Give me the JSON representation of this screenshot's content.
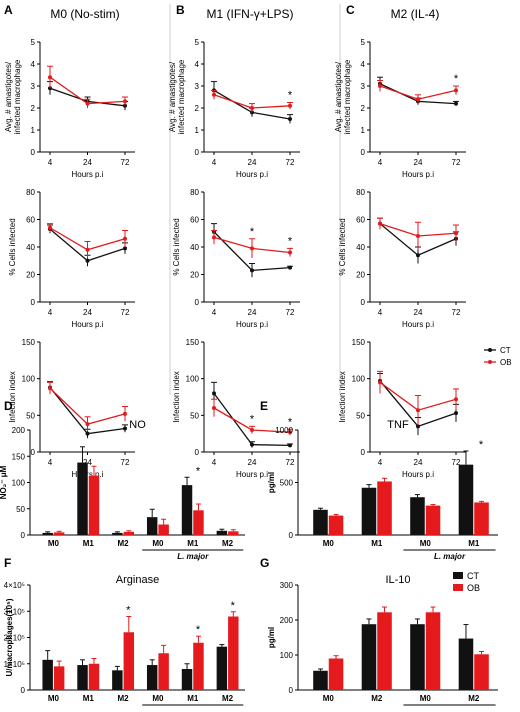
{
  "figure": {
    "panel_letters": [
      "A",
      "B",
      "C",
      "D",
      "E",
      "F",
      "G"
    ],
    "column_titles": [
      "M0 (No-stim)",
      "M1 (IFN-γ+LPS)",
      "M2 (IL-4)"
    ],
    "row_ylabels": [
      "Avg. # amastigotes/ infected macrophage",
      "% Cells infected",
      "Infection index"
    ],
    "xlabel": "Hours p.i",
    "legend_abc": [
      "CT",
      "OB"
    ],
    "legend_fg": [
      "CT",
      "OB"
    ],
    "lmajor_label": "L. major",
    "star": "*"
  },
  "colors": {
    "ct": "#111111",
    "ob": "#e41a1c"
  },
  "chart_data": [
    {
      "panel": "A",
      "row": 0,
      "type": "line",
      "title": "M0 (No-stim)",
      "xlabel": "Hours p.i",
      "ylabel": "Avg. # amastigotes/ infected macrophage",
      "x": [
        "4",
        "24",
        "72"
      ],
      "ylim": [
        0,
        5
      ],
      "yticks": [
        0,
        1,
        2,
        3,
        4,
        5
      ],
      "series": [
        {
          "name": "CT",
          "values": [
            2.9,
            2.3,
            2.1
          ],
          "err": [
            0.3,
            0.2,
            0.2
          ]
        },
        {
          "name": "OB",
          "values": [
            3.4,
            2.2,
            2.3
          ],
          "err": [
            0.5,
            0.2,
            0.2
          ]
        }
      ],
      "stars": []
    },
    {
      "panel": "A",
      "row": 1,
      "type": "line",
      "xlabel": "Hours p.i",
      "ylabel": "% Cells infected",
      "x": [
        "4",
        "24",
        "72"
      ],
      "ylim": [
        0,
        80
      ],
      "yticks": [
        0,
        20,
        40,
        60,
        80
      ],
      "series": [
        {
          "name": "CT",
          "values": [
            53,
            30,
            39
          ],
          "err": [
            3,
            4,
            4
          ]
        },
        {
          "name": "OB",
          "values": [
            54,
            38,
            46
          ],
          "err": [
            3,
            6,
            6
          ]
        }
      ],
      "stars": []
    },
    {
      "panel": "A",
      "row": 2,
      "type": "line",
      "xlabel": "Hours p.i",
      "ylabel": "Infection index",
      "x": [
        "4",
        "24",
        "72"
      ],
      "ylim": [
        0,
        150
      ],
      "yticks": [
        0,
        50,
        100,
        150
      ],
      "series": [
        {
          "name": "CT",
          "values": [
            88,
            25,
            32
          ],
          "err": [
            8,
            6,
            5
          ]
        },
        {
          "name": "OB",
          "values": [
            87,
            38,
            52
          ],
          "err": [
            8,
            10,
            10
          ]
        }
      ],
      "stars": []
    },
    {
      "panel": "B",
      "row": 0,
      "type": "line",
      "title": "M1 (IFN-γ+LPS)",
      "xlabel": "Hours p.i",
      "ylabel": "Avg. # amastigotes/ infected macrophage",
      "x": [
        "4",
        "24",
        "72"
      ],
      "ylim": [
        0,
        5
      ],
      "yticks": [
        0,
        1,
        2,
        3,
        4,
        5
      ],
      "series": [
        {
          "name": "CT",
          "values": [
            2.8,
            1.8,
            1.5
          ],
          "err": [
            0.4,
            0.2,
            0.2
          ]
        },
        {
          "name": "OB",
          "values": [
            2.6,
            2.0,
            2.1
          ],
          "err": [
            0.2,
            0.2,
            0.15
          ]
        }
      ],
      "stars": [
        {
          "x": "72",
          "text": "*"
        }
      ]
    },
    {
      "panel": "B",
      "row": 1,
      "type": "line",
      "xlabel": "Hours p.i",
      "ylabel": "% Cells infected",
      "x": [
        "4",
        "24",
        "72"
      ],
      "ylim": [
        0,
        80
      ],
      "yticks": [
        0,
        20,
        40,
        60,
        80
      ],
      "series": [
        {
          "name": "CT",
          "values": [
            51,
            23,
            25
          ],
          "err": [
            6,
            5,
            1
          ]
        },
        {
          "name": "OB",
          "values": [
            47,
            39,
            36
          ],
          "err": [
            5,
            7,
            3
          ]
        }
      ],
      "stars": [
        {
          "x": "24",
          "text": "*"
        },
        {
          "x": "72",
          "text": "*"
        }
      ]
    },
    {
      "panel": "B",
      "row": 2,
      "type": "line",
      "xlabel": "Hours p.i",
      "ylabel": "Infection index",
      "x": [
        "4",
        "24",
        "72"
      ],
      "ylim": [
        0,
        150
      ],
      "yticks": [
        0,
        50,
        100,
        150
      ],
      "series": [
        {
          "name": "CT",
          "values": [
            80,
            10,
            9
          ],
          "err": [
            15,
            4,
            2
          ]
        },
        {
          "name": "OB",
          "values": [
            60,
            30,
            27
          ],
          "err": [
            12,
            5,
            4
          ]
        }
      ],
      "stars": [
        {
          "x": "24",
          "text": "*"
        },
        {
          "x": "72",
          "text": "*"
        }
      ]
    },
    {
      "panel": "C",
      "row": 0,
      "type": "line",
      "title": "M2 (IL-4)",
      "xlabel": "Hours p.i",
      "ylabel": "Avg. # amastigotes/ infected macrophage",
      "x": [
        "4",
        "24",
        "72"
      ],
      "ylim": [
        0,
        5
      ],
      "yticks": [
        0,
        1,
        2,
        3,
        4,
        5
      ],
      "series": [
        {
          "name": "CT",
          "values": [
            3.1,
            2.3,
            2.2
          ],
          "err": [
            0.3,
            0.15,
            0.1
          ]
        },
        {
          "name": "OB",
          "values": [
            3.0,
            2.4,
            2.8
          ],
          "err": [
            0.25,
            0.2,
            0.2
          ]
        }
      ],
      "stars": [
        {
          "x": "72",
          "text": "*"
        }
      ]
    },
    {
      "panel": "C",
      "row": 1,
      "type": "line",
      "xlabel": "Hours p.i",
      "ylabel": "% Cells infected",
      "x": [
        "4",
        "24",
        "72"
      ],
      "ylim": [
        0,
        80
      ],
      "yticks": [
        0,
        20,
        40,
        60,
        80
      ],
      "series": [
        {
          "name": "CT",
          "values": [
            57,
            34,
            46
          ],
          "err": [
            4,
            6,
            5
          ]
        },
        {
          "name": "OB",
          "values": [
            57,
            48,
            50
          ],
          "err": [
            4,
            10,
            6
          ]
        }
      ],
      "stars": []
    },
    {
      "panel": "C",
      "row": 2,
      "type": "line",
      "xlabel": "Hours p.i",
      "ylabel": "Infection index",
      "x": [
        "4",
        "24",
        "72"
      ],
      "ylim": [
        0,
        150
      ],
      "yticks": [
        0,
        50,
        100,
        150
      ],
      "series": [
        {
          "name": "CT",
          "values": [
            97,
            35,
            53
          ],
          "err": [
            10,
            12,
            12
          ]
        },
        {
          "name": "OB",
          "values": [
            95,
            57,
            72
          ],
          "err": [
            15,
            20,
            14
          ]
        }
      ],
      "stars": [],
      "legend": [
        "CT",
        "OB"
      ]
    },
    {
      "panel": "D",
      "type": "bar",
      "title": "NO",
      "ylabel": "NO₂⁻ μM",
      "categories": [
        "M0",
        "M1",
        "M2",
        "M0",
        "M1",
        "M2"
      ],
      "group_label": "L. major",
      "group_range": [
        3,
        5
      ],
      "ylim": [
        0,
        200
      ],
      "yticks": [
        0,
        50,
        100,
        150,
        200
      ],
      "series": [
        {
          "name": "CT",
          "values": [
            4,
            138,
            4,
            34,
            95,
            8
          ],
          "err": [
            2,
            30,
            2,
            15,
            15,
            3
          ]
        },
        {
          "name": "OB",
          "values": [
            5,
            113,
            6,
            20,
            47,
            7
          ],
          "err": [
            2,
            18,
            2,
            10,
            12,
            3
          ]
        }
      ],
      "stars": [
        {
          "index": 4,
          "text": "*"
        }
      ]
    },
    {
      "panel": "E",
      "type": "bar",
      "title": "TNF",
      "ylabel": "pg/ml",
      "categories": [
        "M0",
        "M1",
        "M0",
        "M1"
      ],
      "group_label": "L. major",
      "group_range": [
        2,
        3
      ],
      "ylim": [
        0,
        1000
      ],
      "yticks": [
        0,
        500,
        1000
      ],
      "series": [
        {
          "name": "CT",
          "values": [
            240,
            450,
            360,
            670
          ],
          "err": [
            15,
            30,
            25,
            130
          ]
        },
        {
          "name": "OB",
          "values": [
            185,
            510,
            280,
            310
          ],
          "err": [
            10,
            30,
            10,
            10
          ]
        }
      ],
      "stars": [
        {
          "index": 3,
          "text": "*"
        }
      ]
    },
    {
      "panel": "F",
      "type": "bar",
      "title": "Arginase",
      "ylabel": "U/macrophages(10⁵)",
      "categories": [
        "M0",
        "M1",
        "M2",
        "M0",
        "M1",
        "M2"
      ],
      "group_label": "L. major",
      "group_range": [
        3,
        5
      ],
      "ylim": [
        0,
        400000
      ],
      "yticks": [
        0,
        100000,
        200000,
        300000,
        400000
      ],
      "ytick_labels": [
        "0",
        "1×10⁵",
        "2×10⁵",
        "3×10⁵",
        "4×10⁵"
      ],
      "series": [
        {
          "name": "CT",
          "values": [
            115000,
            95000,
            75000,
            95000,
            80000,
            165000
          ],
          "err": [
            35000,
            20000,
            15000,
            20000,
            20000,
            8000
          ]
        },
        {
          "name": "OB",
          "values": [
            90000,
            100000,
            220000,
            140000,
            180000,
            280000
          ],
          "err": [
            20000,
            20000,
            60000,
            30000,
            25000,
            18000
          ]
        }
      ],
      "stars": [
        {
          "index": 2,
          "text": "*"
        },
        {
          "index": 4,
          "text": "*"
        },
        {
          "index": 5,
          "text": "*"
        }
      ]
    },
    {
      "panel": "G",
      "type": "bar",
      "title": "IL-10",
      "ylabel": "pg/ml",
      "categories": [
        "M0",
        "M2",
        "M0",
        "M2"
      ],
      "group_label": "L. major",
      "group_range": [
        2,
        3
      ],
      "ylim": [
        0,
        300
      ],
      "yticks": [
        0,
        100,
        200,
        300
      ],
      "series": [
        {
          "name": "CT",
          "values": [
            55,
            188,
            188,
            147
          ],
          "err": [
            5,
            15,
            15,
            40
          ]
        },
        {
          "name": "OB",
          "values": [
            90,
            222,
            222,
            102
          ],
          "err": [
            8,
            15,
            15,
            8
          ]
        }
      ],
      "stars": [],
      "legend": [
        "CT",
        "OB"
      ]
    }
  ]
}
